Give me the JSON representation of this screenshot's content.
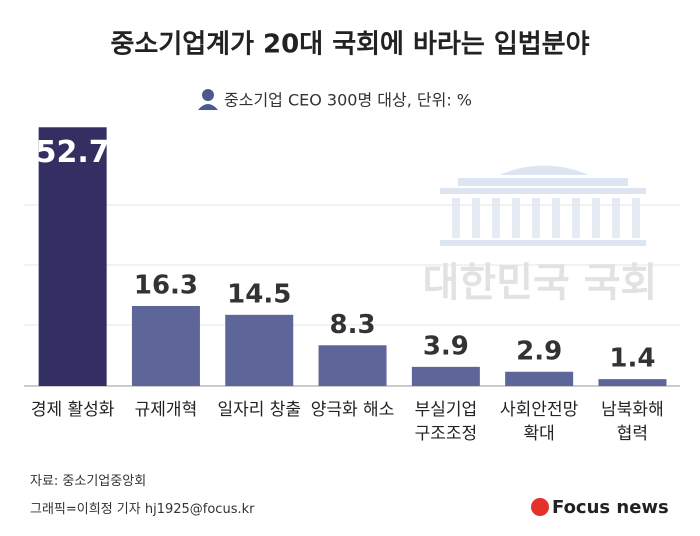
{
  "chart_data": {
    "type": "bar",
    "title": "중소기업계가 20대 국회에 바라는 입법분야",
    "subtitle": "중소기업 CEO 300명 대상, 단위: %",
    "categories": [
      "경제 활성화",
      "규제개혁",
      "일자리 창출",
      "양극화 해소",
      "부실기업 구조조정",
      "사회안전망 확대",
      "남북화해 협력"
    ],
    "values": [
      52.7,
      16.3,
      14.5,
      8.3,
      3.9,
      2.9,
      1.4
    ],
    "colors": [
      "#332f63",
      "#5e6699",
      "#5e6699",
      "#5e6699",
      "#5e6699",
      "#5e6699",
      "#5e6699"
    ],
    "ylim": [
      0,
      55
    ],
    "watermark": "대한민국 국회",
    "source": "자료: 중소기업중앙회",
    "credit": "그래픽=이희정 기자 hj1925@focus.kr",
    "logo": "Focus news"
  }
}
